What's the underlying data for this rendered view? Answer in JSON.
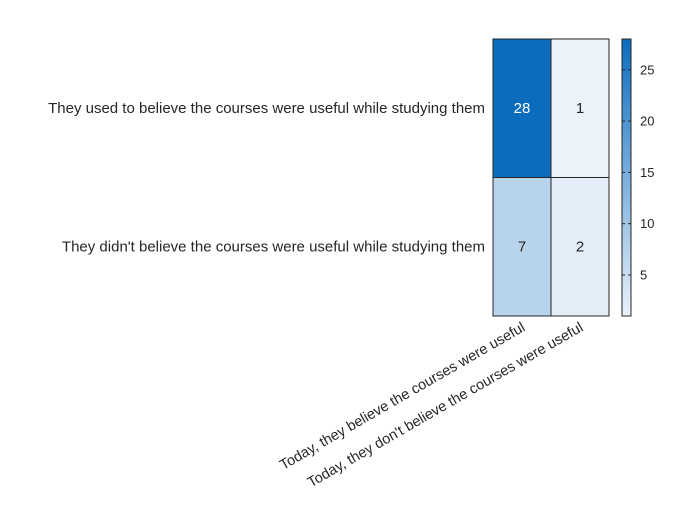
{
  "chart_data": {
    "type": "heatmap",
    "rows": [
      "They used to believe the courses were useful while studying them",
      "They didn't believe the courses were useful while studying them"
    ],
    "columns": [
      "Today, they believe the courses were useful",
      "Today, they don't believe the courses were useful"
    ],
    "values": [
      [
        28,
        1
      ],
      [
        7,
        2
      ]
    ],
    "colorbar": {
      "range": [
        1,
        28
      ],
      "ticks": [
        5,
        10,
        15,
        20,
        25
      ],
      "tick_labels": [
        "5",
        "10",
        "15",
        "20",
        "25"
      ]
    },
    "colormap": {
      "low": "#eaf2fa",
      "high": "#0b6cbe"
    },
    "text_colors": {
      "on_dark": "#ffffff",
      "on_light": "#262626"
    },
    "title": "",
    "xlabel": "",
    "ylabel": ""
  }
}
